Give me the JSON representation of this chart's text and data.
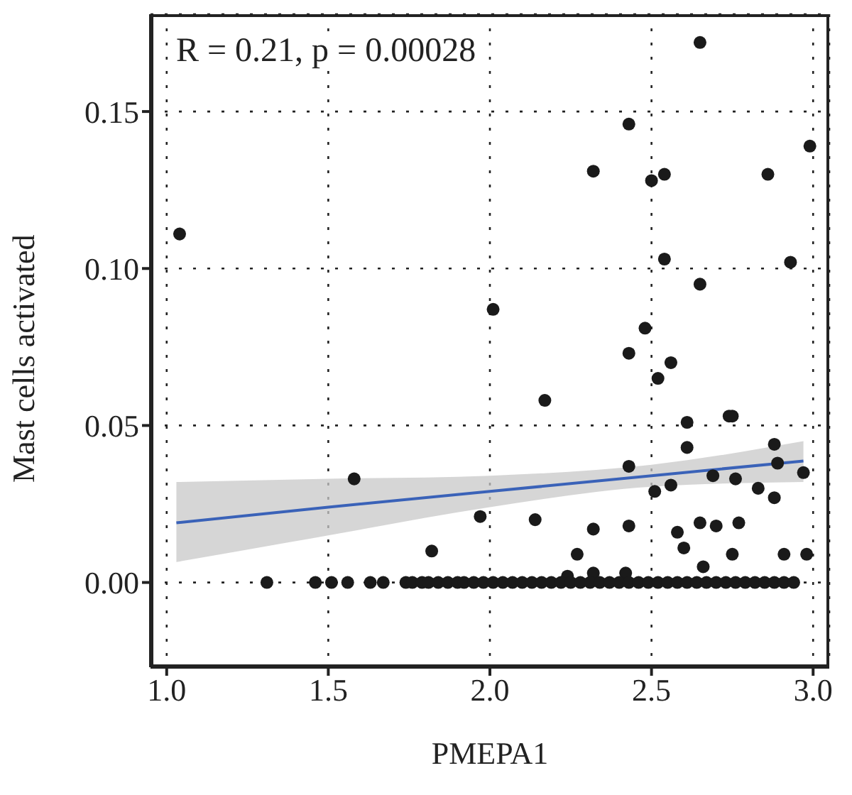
{
  "chart_data": {
    "type": "scatter",
    "xlabel": "PMEPA1",
    "ylabel": "Mast cells activated",
    "annotations": [
      "R = 0.21, p = 0.00028"
    ],
    "xlim": [
      0.95,
      3.05
    ],
    "ylim": [
      -0.027,
      0.181
    ],
    "xticks": [
      {
        "value": 1,
        "label": "1.0"
      },
      1.5,
      {
        "value": 2,
        "label": "2.0"
      },
      2.5,
      {
        "value": 3,
        "label": "3.0"
      }
    ],
    "yticks": [
      {
        "value": 0,
        "label": "0.00"
      },
      0.05,
      {
        "value": 0.1,
        "label": "0.10"
      },
      0.15
    ],
    "grid": true,
    "series": [
      {
        "marker": "circle",
        "color": "#1a1a1a",
        "x": [
          1.04,
          1.58,
          1.82,
          1.97,
          2.01,
          2.43,
          2.65,
          2.99,
          2.32,
          2.5,
          2.54,
          2.86,
          2.54,
          2.93,
          2.65,
          2.48,
          2.43,
          2.56,
          2.52,
          2.17,
          2.61,
          2.74,
          2.75,
          2.61,
          2.88,
          2.43,
          2.89,
          2.69,
          2.76,
          2.97,
          2.56,
          2.51,
          2.83,
          2.88,
          2.14,
          2.32,
          2.43,
          2.65,
          2.7,
          2.77,
          2.58,
          2.6,
          2.27,
          2.75,
          2.91,
          2.98,
          2.66,
          2.24,
          2.32,
          2.42,
          1.31,
          1.46,
          1.51,
          1.56,
          1.63,
          1.67,
          1.74,
          1.76,
          1.79,
          1.81,
          1.84,
          1.87,
          1.9,
          1.92,
          1.95,
          1.98,
          2.01,
          2.04,
          2.07,
          2.1,
          2.13,
          2.16,
          2.19,
          2.22,
          2.25,
          2.28,
          2.31,
          2.34,
          2.37,
          2.4,
          2.43,
          2.46,
          2.49,
          2.52,
          2.55,
          2.58,
          2.61,
          2.64,
          2.67,
          2.7,
          2.73,
          2.76,
          2.79,
          2.82,
          2.85,
          2.88,
          2.91,
          2.94
        ],
        "values": [
          0.111,
          0.033,
          0.01,
          0.021,
          0.087,
          0.146,
          0.172,
          0.139,
          0.131,
          0.128,
          0.13,
          0.13,
          0.103,
          0.102,
          0.095,
          0.081,
          0.073,
          0.07,
          0.065,
          0.058,
          0.051,
          0.053,
          0.053,
          0.043,
          0.044,
          0.037,
          0.038,
          0.034,
          0.033,
          0.035,
          0.031,
          0.029,
          0.03,
          0.027,
          0.02,
          0.017,
          0.018,
          0.019,
          0.018,
          0.019,
          0.016,
          0.011,
          0.009,
          0.009,
          0.009,
          0.009,
          0.005,
          0.002,
          0.003,
          0.003,
          0,
          0,
          0,
          0,
          0,
          0,
          0,
          0,
          0,
          0,
          0,
          0,
          0,
          0,
          0,
          0,
          0,
          0,
          0,
          0,
          0,
          0,
          0,
          0,
          0,
          0,
          0,
          0,
          0,
          0,
          0,
          0,
          0,
          0,
          0,
          0,
          0,
          0,
          0,
          0,
          0,
          0,
          0,
          0,
          0,
          0,
          0,
          0
        ]
      },
      {
        "type": "line",
        "color": "#3a62b8",
        "x": [
          1.03,
          1.5,
          2.0,
          2.5,
          2.97
        ],
        "values": [
          0.019,
          0.024,
          0.029,
          0.034,
          0.0387
        ],
        "lower": [
          0.0065,
          0.015,
          0.024,
          0.0305,
          0.032
        ],
        "upper": [
          0.032,
          0.033,
          0.034,
          0.0375,
          0.045
        ]
      }
    ]
  }
}
